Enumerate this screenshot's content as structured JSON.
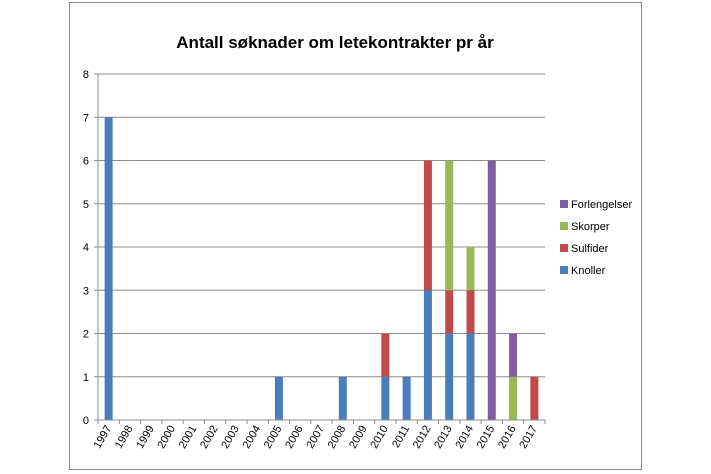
{
  "chart_data": {
    "type": "bar",
    "stacked": true,
    "title": "Antall søknader om letekontrakter pr år",
    "xlabel": "",
    "ylabel": "",
    "ylim": [
      0,
      8
    ],
    "yticks": [
      0,
      1,
      2,
      3,
      4,
      5,
      6,
      7,
      8
    ],
    "grid": true,
    "legend_position": "right",
    "categories": [
      "1997",
      "1998",
      "1999",
      "2000",
      "2001",
      "2002",
      "2003",
      "2004",
      "2005",
      "2006",
      "2007",
      "2008",
      "2009",
      "2010",
      "2011",
      "2012",
      "2013",
      "2014",
      "2015",
      "2016",
      "2017"
    ],
    "series": [
      {
        "name": "Knoller",
        "color": "#4a7ebb",
        "values": [
          7,
          0,
          0,
          0,
          0,
          0,
          0,
          0,
          1,
          0,
          0,
          1,
          0,
          1,
          1,
          3,
          2,
          2,
          0,
          0,
          0
        ]
      },
      {
        "name": "Sulfider",
        "color": "#be4b48",
        "values": [
          0,
          0,
          0,
          0,
          0,
          0,
          0,
          0,
          0,
          0,
          0,
          0,
          0,
          1,
          0,
          3,
          1,
          1,
          0,
          0,
          1
        ]
      },
      {
        "name": "Skorper",
        "color": "#98b954",
        "values": [
          0,
          0,
          0,
          0,
          0,
          0,
          0,
          0,
          0,
          0,
          0,
          0,
          0,
          0,
          0,
          0,
          3,
          1,
          0,
          1,
          0
        ]
      },
      {
        "name": "Forlengelser",
        "color": "#7d5fa0",
        "values": [
          0,
          0,
          0,
          0,
          0,
          0,
          0,
          0,
          0,
          0,
          0,
          0,
          0,
          0,
          0,
          0,
          0,
          0,
          6,
          1,
          0
        ]
      }
    ],
    "legend_order": [
      "Forlengelser",
      "Skorper",
      "Sulfider",
      "Knoller"
    ]
  }
}
